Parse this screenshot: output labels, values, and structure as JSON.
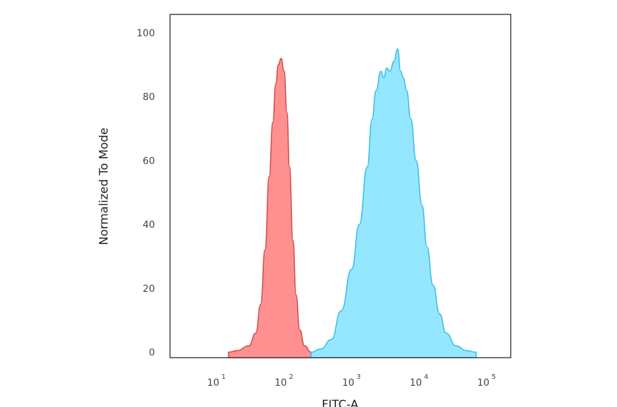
{
  "chart_data": {
    "type": "area",
    "xlabel": "FITC-A",
    "ylabel": "Normalized To Mode",
    "xscale": "log",
    "xlim": [
      1,
      100000
    ],
    "ylim": [
      0,
      105
    ],
    "x_ticks": [
      {
        "value": 10,
        "base": "10",
        "exp": "1"
      },
      {
        "value": 100,
        "base": "10",
        "exp": "2"
      },
      {
        "value": 1000,
        "base": "10",
        "exp": "3"
      },
      {
        "value": 10000,
        "base": "10",
        "exp": "4"
      },
      {
        "value": 100000,
        "base": "10",
        "exp": "5"
      }
    ],
    "y_ticks": [
      "0",
      "20",
      "40",
      "60",
      "80",
      "100"
    ],
    "grid": false,
    "legend": "none",
    "series": [
      {
        "color": "#FF8A8A",
        "stroke": "#D64C4C",
        "points": [
          [
            15,
            0
          ],
          [
            20,
            0.5
          ],
          [
            30,
            2
          ],
          [
            38,
            6
          ],
          [
            45,
            15
          ],
          [
            52,
            32
          ],
          [
            60,
            55
          ],
          [
            68,
            72
          ],
          [
            75,
            84
          ],
          [
            82,
            90
          ],
          [
            90,
            92
          ],
          [
            100,
            88
          ],
          [
            110,
            75
          ],
          [
            120,
            58
          ],
          [
            135,
            35
          ],
          [
            150,
            18
          ],
          [
            170,
            7
          ],
          [
            200,
            2
          ],
          [
            250,
            0
          ]
        ]
      },
      {
        "color": "#8FE6FF",
        "stroke": "#38C0E6",
        "points": [
          [
            250,
            0
          ],
          [
            350,
            1
          ],
          [
            500,
            4
          ],
          [
            700,
            13
          ],
          [
            1000,
            26
          ],
          [
            1300,
            40
          ],
          [
            1700,
            58
          ],
          [
            2000,
            73
          ],
          [
            2300,
            82
          ],
          [
            2700,
            88
          ],
          [
            3000,
            86
          ],
          [
            3300,
            89
          ],
          [
            3700,
            88
          ],
          [
            4200,
            91
          ],
          [
            4800,
            95
          ],
          [
            5300,
            88
          ],
          [
            5800,
            86
          ],
          [
            6500,
            82
          ],
          [
            7500,
            73
          ],
          [
            9000,
            60
          ],
          [
            11000,
            46
          ],
          [
            13000,
            33
          ],
          [
            16000,
            21
          ],
          [
            20000,
            12
          ],
          [
            25000,
            6
          ],
          [
            35000,
            2
          ],
          [
            50000,
            0.5
          ],
          [
            70000,
            0
          ]
        ]
      }
    ]
  }
}
